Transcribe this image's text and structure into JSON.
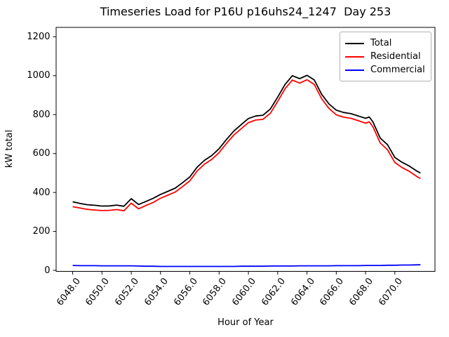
{
  "chart_data": {
    "type": "line",
    "title": "Timeseries Load for P16U p16uhs24_1247  Day 253",
    "xlabel": "Hour of Year",
    "ylabel": "kW total",
    "grid": false,
    "xlim": [
      6046.87,
      6072.74
    ],
    "ylim": [
      -5.4,
      1248.3
    ],
    "xticks": {
      "values": [
        6048,
        6050,
        6052,
        6054,
        6056,
        6058,
        6060,
        6062,
        6064,
        6066,
        6068,
        6070
      ],
      "labels": [
        "6048.0",
        "6050.0",
        "6052.0",
        "6054.0",
        "6056.0",
        "6058.0",
        "6060.0",
        "6062.0",
        "6064.0",
        "6066.0",
        "6068.0",
        "6070.0"
      ],
      "rotation_deg": 52
    },
    "yticks": {
      "values": [
        0,
        200,
        400,
        600,
        800,
        1000,
        1200
      ],
      "labels": [
        "0",
        "200",
        "400",
        "600",
        "800",
        "1000",
        "1200"
      ]
    },
    "legend": {
      "position": "upper right",
      "entries": [
        {
          "label": "Total",
          "color": "#000000"
        },
        {
          "label": "Residential",
          "color": "#ff0000"
        },
        {
          "label": "Commercial",
          "color": "#0000ff"
        }
      ]
    },
    "x": [
      6048.0,
      6048.5,
      6049.0,
      6049.5,
      6050.0,
      6050.5,
      6051.0,
      6051.5,
      6052.0,
      6052.5,
      6053.0,
      6053.5,
      6054.0,
      6054.5,
      6055.0,
      6055.5,
      6056.0,
      6056.5,
      6057.0,
      6057.5,
      6058.0,
      6058.5,
      6059.0,
      6059.5,
      6060.0,
      6060.5,
      6061.0,
      6061.5,
      6062.0,
      6062.5,
      6063.0,
      6063.5,
      6064.0,
      6064.5,
      6065.0,
      6065.5,
      6066.0,
      6066.5,
      6067.0,
      6067.5,
      6068.0,
      6068.25,
      6068.5,
      6069.0,
      6069.5,
      6070.0,
      6070.5,
      6071.0,
      6071.5,
      6071.75
    ],
    "series": [
      {
        "name": "Total",
        "color": "#000000",
        "values": [
          352,
          344,
          337,
          334,
          330,
          331,
          335,
          329,
          368,
          338,
          354,
          370,
          390,
          406,
          422,
          450,
          480,
          530,
          565,
          590,
          625,
          672,
          715,
          748,
          780,
          793,
          797,
          829,
          890,
          955,
          1000,
          985,
          1002,
          978,
          905,
          855,
          823,
          811,
          805,
          793,
          781,
          788,
          763,
          680,
          645,
          580,
          555,
          535,
          510,
          500
        ]
      },
      {
        "name": "Residential",
        "color": "#ff0000",
        "values": [
          327,
          320,
          313,
          310,
          307,
          308,
          312,
          306,
          345,
          316,
          333,
          349,
          370,
          386,
          402,
          430,
          460,
          510,
          545,
          570,
          605,
          652,
          695,
          727,
          759,
          772,
          776,
          807,
          868,
          933,
          978,
          962,
          979,
          955,
          882,
          832,
          799,
          787,
          781,
          769,
          756,
          763,
          738,
          655,
          619,
          554,
          528,
          508,
          482,
          472
        ]
      },
      {
        "name": "Commercial",
        "color": "#0000ff",
        "values": [
          25,
          24,
          24,
          24,
          23,
          23,
          23,
          23,
          23,
          22,
          21,
          21,
          20,
          20,
          20,
          20,
          20,
          20,
          20,
          20,
          20,
          20,
          20,
          21,
          21,
          21,
          21,
          22,
          22,
          22,
          22,
          23,
          23,
          23,
          23,
          23,
          24,
          24,
          24,
          24,
          25,
          25,
          25,
          25,
          26,
          26,
          27,
          27,
          28,
          28
        ]
      }
    ]
  }
}
